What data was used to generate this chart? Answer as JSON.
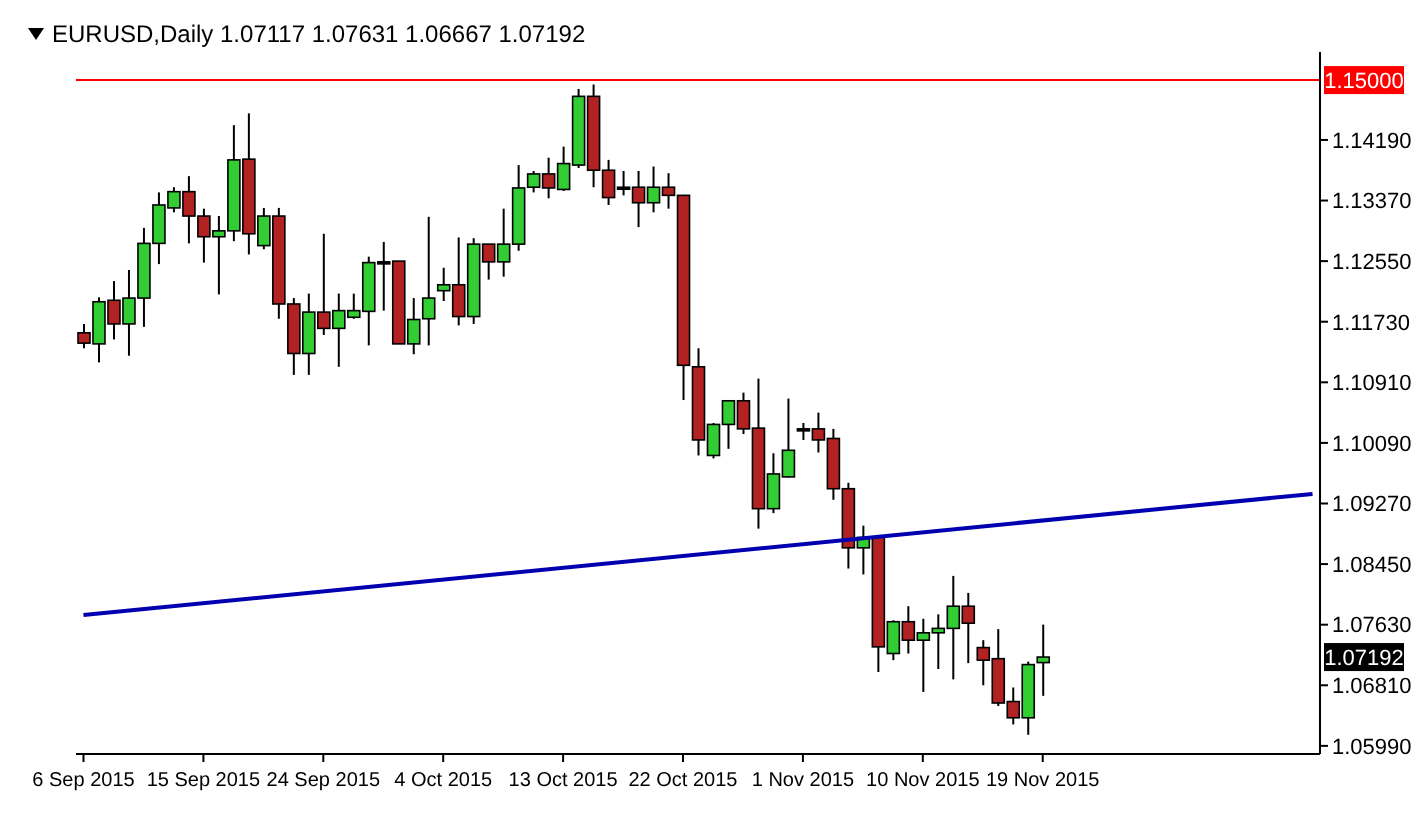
{
  "chart_data": {
    "type": "candlestick",
    "title": "EURUSD,Daily  1.07117 1.07631 1.06667 1.07192",
    "categories": [
      "6 Sep 2015",
      null,
      null,
      null,
      null,
      null,
      null,
      null,
      "15 Sep 2015",
      null,
      null,
      null,
      null,
      null,
      null,
      null,
      "24 Sep 2015",
      null,
      null,
      null,
      null,
      null,
      null,
      null,
      "4 Oct 2015",
      null,
      null,
      null,
      null,
      null,
      null,
      null,
      "13 Oct 2015",
      null,
      null,
      null,
      null,
      null,
      null,
      null,
      "22 Oct 2015",
      null,
      null,
      null,
      null,
      null,
      null,
      null,
      "1 Nov 2015",
      null,
      null,
      null,
      null,
      null,
      null,
      null,
      "10 Nov 2015",
      null,
      null,
      null,
      null,
      null,
      null,
      null,
      "19 Nov 2015",
      null,
      null,
      null,
      null,
      null,
      null,
      null,
      null,
      null,
      null,
      null,
      null,
      null,
      null,
      null,
      null,
      null,
      null
    ],
    "ohlc": [
      [
        1.1158,
        1.117,
        1.1137,
        1.1144
      ],
      [
        1.1143,
        1.1206,
        1.1118,
        1.12
      ],
      [
        1.1202,
        1.1228,
        1.1149,
        1.117
      ],
      [
        1.117,
        1.1243,
        1.1127,
        1.1205
      ],
      [
        1.1205,
        1.13,
        1.1166,
        1.1279
      ],
      [
        1.1279,
        1.1348,
        1.1251,
        1.1331
      ],
      [
        1.1327,
        1.1355,
        1.1321,
        1.1349
      ],
      [
        1.1349,
        1.137,
        1.1279,
        1.1316
      ],
      [
        1.1316,
        1.1326,
        1.1253,
        1.1288
      ],
      [
        1.1288,
        1.1316,
        1.121,
        1.1296
      ],
      [
        1.1296,
        1.1439,
        1.1282,
        1.1392
      ],
      [
        1.1393,
        1.1455,
        1.1264,
        1.1292
      ],
      [
        1.1276,
        1.1327,
        1.1271,
        1.1316
      ],
      [
        1.1316,
        1.1327,
        1.1177,
        1.1197
      ],
      [
        1.1197,
        1.1205,
        1.1101,
        1.113
      ],
      [
        1.113,
        1.1211,
        1.1101,
        1.1186
      ],
      [
        1.1186,
        1.1292,
        1.1155,
        1.1164
      ],
      [
        1.1164,
        1.1211,
        1.1112,
        1.1188
      ],
      [
        1.1179,
        1.1211,
        1.1177,
        1.1188
      ],
      [
        1.1187,
        1.1261,
        1.1141,
        1.1253
      ],
      [
        1.1254,
        1.1281,
        1.1188,
        1.1254
      ],
      [
        1.1255,
        1.1255,
        1.1143,
        1.1143
      ],
      [
        1.1143,
        1.1205,
        1.1129,
        1.1176
      ],
      [
        1.1177,
        1.1315,
        1.1141,
        1.1205
      ],
      [
        1.1215,
        1.1246,
        1.1201,
        1.1223
      ],
      [
        1.1223,
        1.1287,
        1.1168,
        1.118
      ],
      [
        1.118,
        1.1286,
        1.117,
        1.1278
      ],
      [
        1.1278,
        1.1278,
        1.123,
        1.1254
      ],
      [
        1.1254,
        1.1326,
        1.1234,
        1.1278
      ],
      [
        1.1278,
        1.1385,
        1.1269,
        1.1354
      ],
      [
        1.1355,
        1.1377,
        1.1348,
        1.1373
      ],
      [
        1.1373,
        1.1395,
        1.134,
        1.1354
      ],
      [
        1.1352,
        1.141,
        1.135,
        1.1387
      ],
      [
        1.1385,
        1.1488,
        1.1381,
        1.1478
      ],
      [
        1.1478,
        1.1494,
        1.1355,
        1.1378
      ],
      [
        1.1378,
        1.1392,
        1.1331,
        1.1341
      ],
      [
        1.1355,
        1.1377,
        1.1344,
        1.1355
      ],
      [
        1.1355,
        1.1377,
        1.1301,
        1.1334
      ],
      [
        1.1334,
        1.1383,
        1.1321,
        1.1355
      ],
      [
        1.1355,
        1.1374,
        1.1326,
        1.1344
      ],
      [
        1.1344,
        1.1344,
        1.1067,
        1.1114
      ],
      [
        1.1112,
        1.1137,
        1.0992,
        1.1013
      ],
      [
        1.0992,
        1.1036,
        1.0988,
        1.1034
      ],
      [
        1.1034,
        1.1066,
        1.1001,
        1.1066
      ],
      [
        1.1066,
        1.1077,
        1.1021,
        1.1028
      ],
      [
        1.1029,
        1.1096,
        1.0893,
        1.092
      ],
      [
        1.092,
        1.0995,
        1.0914,
        1.0967
      ],
      [
        1.0963,
        1.1069,
        1.0962,
        1.0999
      ],
      [
        1.1028,
        1.1036,
        1.1013,
        1.1028
      ],
      [
        1.1028,
        1.105,
        1.0996,
        1.1013
      ],
      [
        1.1015,
        1.1028,
        1.0932,
        1.0947
      ],
      [
        1.0947,
        1.0955,
        1.0839,
        1.0867
      ],
      [
        1.0867,
        1.0897,
        1.0831,
        1.0881
      ],
      [
        1.0882,
        1.0882,
        1.0699,
        1.0733
      ],
      [
        1.0724,
        1.0769,
        1.0715,
        1.0767
      ],
      [
        1.0767,
        1.0788,
        1.0724,
        1.0742
      ],
      [
        1.0742,
        1.0771,
        1.0672,
        1.0752
      ],
      [
        1.0752,
        1.0777,
        1.0703,
        1.0758
      ],
      [
        1.0758,
        1.0829,
        1.0689,
        1.0788
      ],
      [
        1.0788,
        1.0806,
        1.0711,
        1.0765
      ],
      [
        1.0732,
        1.0742,
        1.0681,
        1.0715
      ],
      [
        1.0717,
        1.0757,
        1.0653,
        1.0657
      ],
      [
        1.0659,
        1.0678,
        1.0628,
        1.0637
      ],
      [
        1.0637,
        1.0713,
        1.0614,
        1.0709
      ],
      [
        1.07117,
        1.07631,
        1.06667,
        1.07192
      ],
      null,
      null,
      null,
      null,
      null,
      null,
      null,
      null,
      null,
      null,
      null,
      null,
      null,
      null,
      null,
      null,
      null,
      null
    ],
    "colors": [
      "#b22222",
      "#32cd32",
      "#b22222",
      "#32cd32",
      "#32cd32",
      "#32cd32",
      "#32cd32",
      "#b22222",
      "#b22222",
      "#32cd32",
      "#32cd32",
      "#b22222",
      "#32cd32",
      "#b22222",
      "#b22222",
      "#32cd32",
      "#b22222",
      "#32cd32",
      "#32cd32",
      "#32cd32",
      "#000000",
      "#b22222",
      "#32cd32",
      "#32cd32",
      "#32cd32",
      "#b22222",
      "#32cd32",
      "#b22222",
      "#32cd32",
      "#32cd32",
      "#32cd32",
      "#b22222",
      "#32cd32",
      "#32cd32",
      "#b22222",
      "#b22222",
      "#000000",
      "#b22222",
      "#32cd32",
      "#b22222",
      "#b22222",
      "#b22222",
      "#32cd32",
      "#32cd32",
      "#b22222",
      "#b22222",
      "#32cd32",
      "#32cd32",
      "#000000",
      "#b22222",
      "#b22222",
      "#b22222",
      "#32cd32",
      "#b22222",
      "#32cd32",
      "#b22222",
      "#32cd32",
      "#32cd32",
      "#32cd32",
      "#b22222",
      "#b22222",
      "#b22222",
      "#b22222",
      "#32cd32",
      "#32cd32",
      null,
      null,
      null,
      null,
      null,
      null,
      null,
      null,
      null,
      null,
      null,
      null,
      null,
      null,
      null,
      null,
      null,
      null
    ],
    "series": [
      {
        "type": "line",
        "color": "#0000b0",
        "values": [
          1.0776,
          null,
          null,
          null,
          null,
          null,
          null,
          null,
          null,
          null,
          null,
          null,
          null,
          null,
          null,
          null,
          null,
          null,
          null,
          null,
          null,
          null,
          null,
          null,
          null,
          null,
          null,
          null,
          null,
          null,
          null,
          null,
          null,
          null,
          null,
          null,
          null,
          null,
          null,
          null,
          null,
          null,
          null,
          null,
          null,
          null,
          null,
          null,
          null,
          null,
          null,
          null,
          null,
          null,
          null,
          null,
          null,
          null,
          null,
          null,
          null,
          null,
          null,
          null,
          null,
          null,
          null,
          null,
          null,
          null,
          null,
          null,
          null,
          null,
          null,
          null,
          null,
          null,
          null,
          null,
          null,
          null,
          1.094
        ]
      }
    ],
    "ylim": [
      1.0588,
      1.1538
    ],
    "yticks": [
      {
        "value": 1.0599,
        "label": "1.05990"
      },
      {
        "value": 1.0681,
        "label": "1.06810"
      },
      {
        "value": 1.0763,
        "label": "1.07630"
      },
      {
        "value": 1.0845,
        "label": "1.08450"
      },
      {
        "value": 1.0927,
        "label": "1.09270"
      },
      {
        "value": 1.1009,
        "label": "1.10090"
      },
      {
        "value": 1.1091,
        "label": "1.10910"
      },
      {
        "value": 1.1173,
        "label": "1.11730"
      },
      {
        "value": 1.1255,
        "label": "1.12550"
      },
      {
        "value": 1.1337,
        "label": "1.13370"
      },
      {
        "value": 1.1419,
        "label": "1.14190"
      }
    ],
    "ref_lines": [
      {
        "axis": "y",
        "value": 1.15,
        "label": "1.15000",
        "color": "#ff0000"
      }
    ],
    "annotations": [
      {
        "text": "1.07192",
        "y": 1.07192
      }
    ],
    "marker": "none"
  }
}
